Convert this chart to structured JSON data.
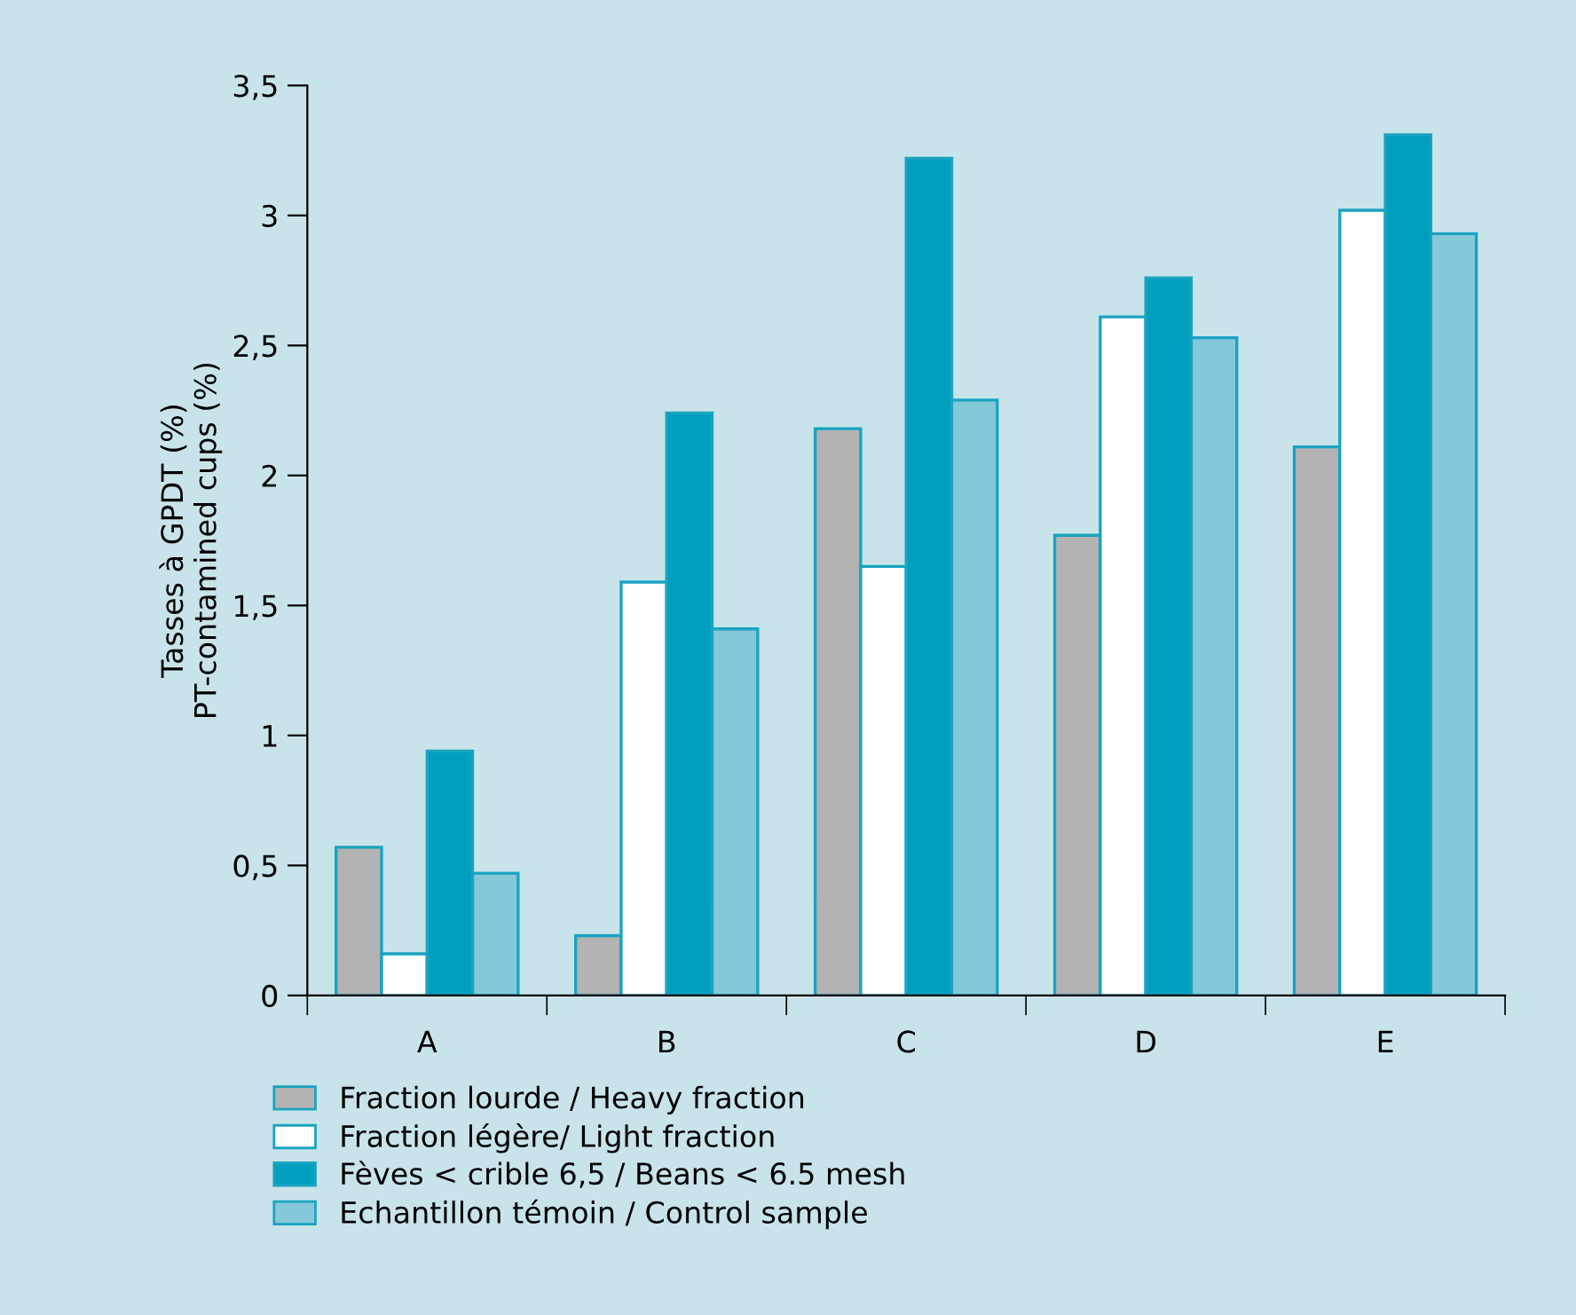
{
  "chart_data": {
    "type": "bar",
    "ylabel": "Tasses à GPDT (%)\nPT-contamined cups (%)",
    "categories": [
      "A",
      "B",
      "C",
      "D",
      "E"
    ],
    "series": [
      {
        "name": "Fraction lourde / Heavy fraction",
        "color": "#b3b3b3",
        "values": [
          0.57,
          0.23,
          2.18,
          1.77,
          2.11
        ]
      },
      {
        "name": "Fraction légère/ Light fraction",
        "color": "#ffffff",
        "values": [
          0.16,
          1.59,
          1.65,
          2.61,
          3.02
        ]
      },
      {
        "name": "Fèves < crible 6,5 / Beans < 6.5 mesh",
        "color": "#009fbf",
        "values": [
          0.94,
          2.24,
          3.22,
          2.76,
          3.31
        ]
      },
      {
        "name": "Echantillon témoin / Control sample",
        "color": "#85c8d9",
        "values": [
          0.47,
          1.41,
          2.29,
          2.53,
          2.93
        ]
      }
    ],
    "ylim": [
      0,
      3.5
    ],
    "yticks": [
      0,
      {
        "value": 0.5,
        "label": "0,5"
      },
      1,
      {
        "value": 1.5,
        "label": "1,5"
      },
      2,
      {
        "value": 2.5,
        "label": "2,5"
      },
      3,
      {
        "value": 3.5,
        "label": "3,5"
      }
    ],
    "grid": false,
    "legend": "bottom"
  }
}
